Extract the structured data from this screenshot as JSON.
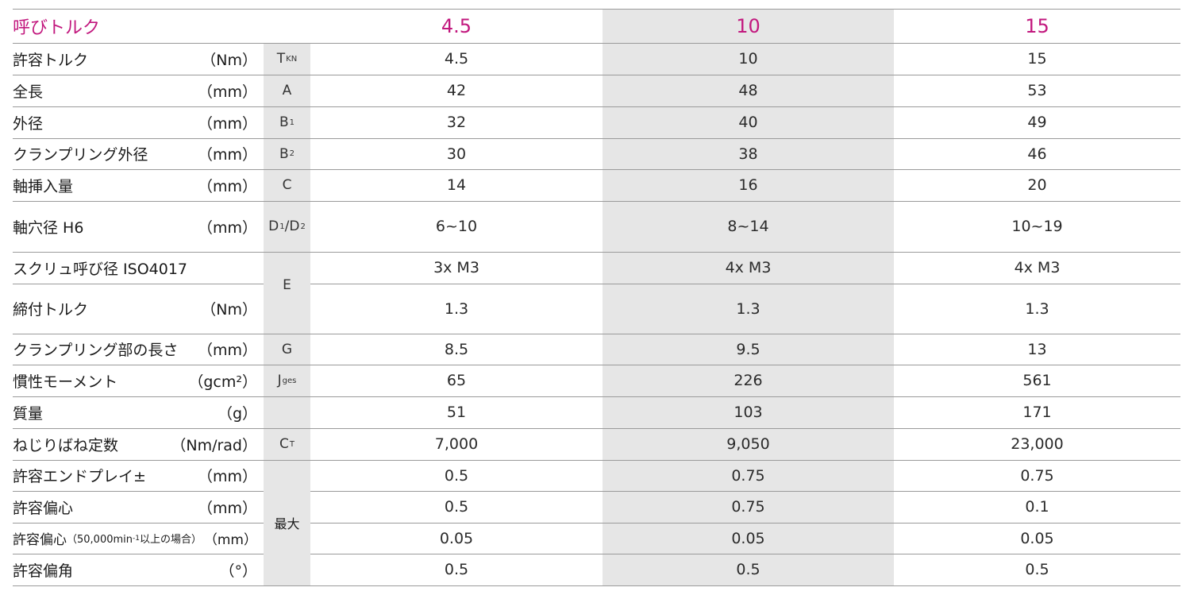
{
  "header": {
    "title": "呼びトルク",
    "sizes": [
      "4.5",
      "10",
      "15"
    ]
  },
  "rows": [
    {
      "label": "許容トルク",
      "unit": "（Nm）",
      "symbol": "T",
      "symbol_sub": "KN",
      "values": [
        "4.5",
        "10",
        "15"
      ]
    },
    {
      "label": "全長",
      "unit": "（mm）",
      "symbol": "A",
      "symbol_sub": "",
      "values": [
        "42",
        "48",
        "53"
      ]
    },
    {
      "label": "外径",
      "unit": "（mm）",
      "symbol": "B",
      "symbol_sub": "1",
      "values": [
        "32",
        "40",
        "49"
      ]
    },
    {
      "label": "クランプリング外径",
      "unit": "（mm）",
      "symbol": "B",
      "symbol_sub": "2",
      "values": [
        "30",
        "38",
        "46"
      ]
    },
    {
      "label": "軸挿入量",
      "unit": "（mm）",
      "symbol": "C",
      "symbol_sub": "",
      "values": [
        "14",
        "16",
        "20"
      ]
    },
    {
      "label": "軸穴径 H6",
      "unit": "（mm）",
      "symbol": "D1/D2",
      "symbol_sub": "",
      "values": [
        "6~10",
        "8~14",
        "10~19"
      ]
    },
    {
      "label": "スクリュ呼び径 ISO4017",
      "unit": "",
      "symbol": "",
      "symbol_sub": "",
      "values": [
        "3x M3",
        "4x M3",
        "4x M3"
      ]
    },
    {
      "label": "締付トルク",
      "unit": "（Nm）",
      "symbol": "E",
      "symbol_sub": "",
      "values": [
        "1.3",
        "1.3",
        "1.3"
      ]
    },
    {
      "label": "クランプリング部の長さ",
      "unit": "（mm）",
      "symbol": "G",
      "symbol_sub": "",
      "values": [
        "8.5",
        "9.5",
        "13"
      ]
    },
    {
      "label": "慣性モーメント",
      "unit": "（gcm²）",
      "symbol": "J",
      "symbol_sub": "ges",
      "values": [
        "65",
        "226",
        "561"
      ]
    },
    {
      "label": "質量",
      "unit": "（g）",
      "symbol": "",
      "symbol_sub": "",
      "values": [
        "51",
        "103",
        "171"
      ]
    },
    {
      "label": "ねじりばね定数",
      "unit": "（Nm/rad）",
      "symbol": "C",
      "symbol_sub": "T",
      "values": [
        "7,000",
        "9,050",
        "23,000"
      ]
    },
    {
      "label": "許容エンドプレイ±",
      "unit": "（mm）",
      "symbol": "",
      "symbol_sub": "",
      "values": [
        "0.5",
        "0.75",
        "0.75"
      ]
    },
    {
      "label": "許容偏心",
      "unit": "（mm）",
      "symbol": "",
      "symbol_sub": "",
      "values": [
        "0.5",
        "0.75",
        "0.1"
      ]
    },
    {
      "label": "許容偏心",
      "label_note": "（50,000min",
      "label_sup": "-1",
      "label_note_end": "以上の場合）",
      "unit": "（mm）",
      "symbol": "",
      "symbol_sub": "",
      "values": [
        "0.05",
        "0.05",
        "0.05"
      ]
    },
    {
      "label": "許容偏角",
      "unit": "（°）",
      "symbol": "",
      "symbol_sub": "",
      "values": [
        "0.5",
        "0.5",
        "0.5"
      ]
    }
  ],
  "max_label": "最大",
  "colors": {
    "accent": "#c2187e",
    "shade": "#e6e6e6",
    "rule": "#9a9a9a"
  }
}
